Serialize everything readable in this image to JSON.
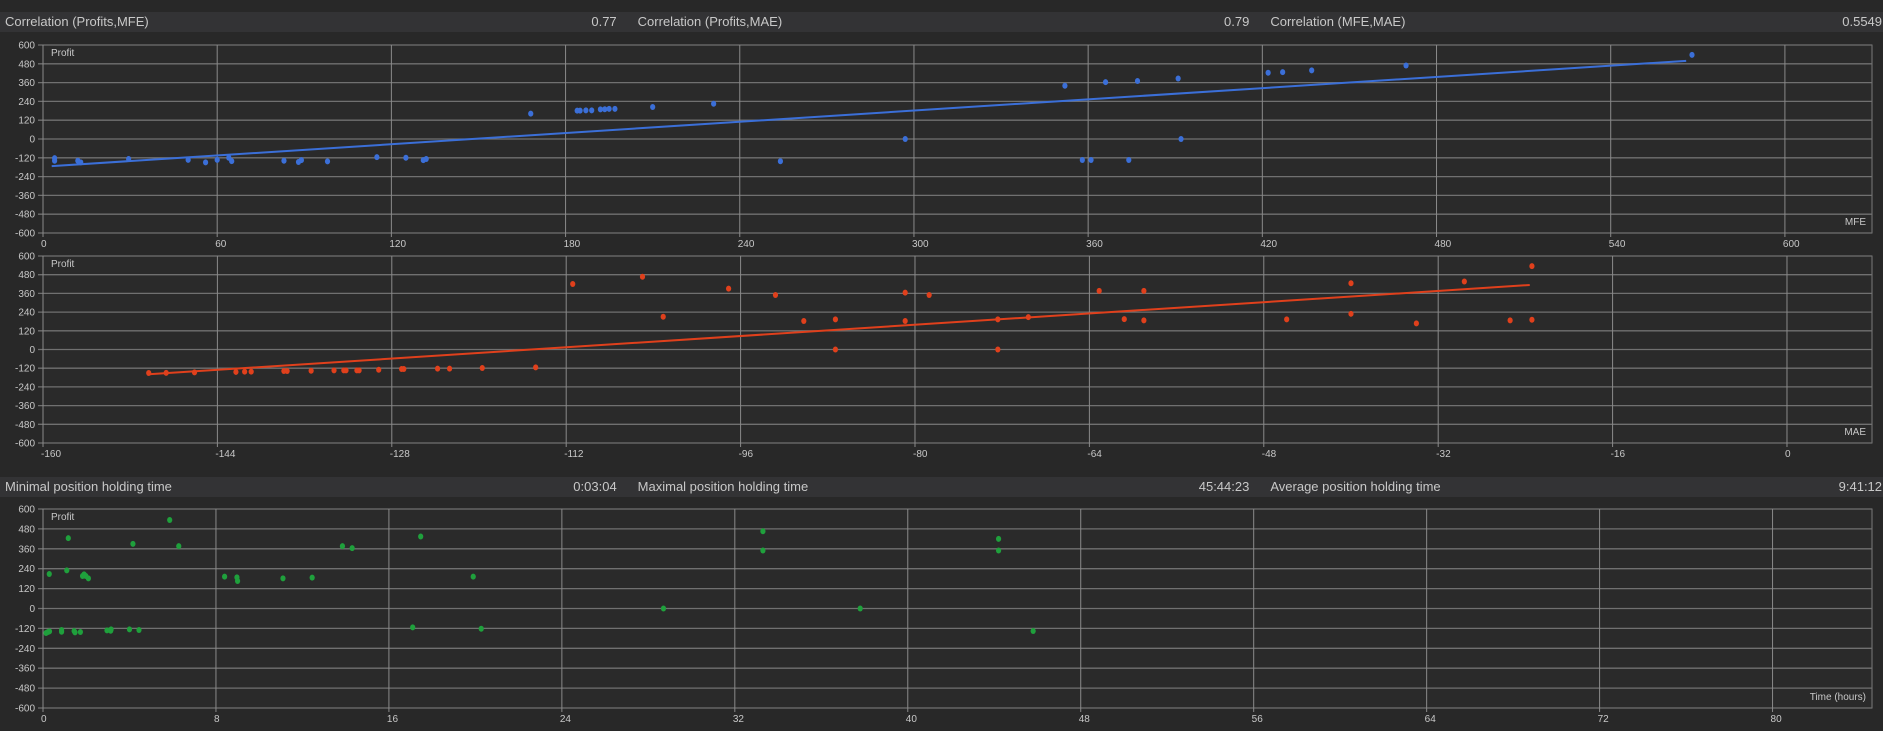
{
  "correlations": [
    {
      "label": "Correlation (Profits,MFE)",
      "value": "0.77"
    },
    {
      "label": "Correlation (Profits,MAE)",
      "value": "0.79"
    },
    {
      "label": "Correlation (MFE,MAE)",
      "value": "0.5549"
    }
  ],
  "holding_times": [
    {
      "label": "Minimal position holding time",
      "value": "0:03:04"
    },
    {
      "label": "Maximal position holding time",
      "value": "45:44:23"
    },
    {
      "label": "Average position holding time",
      "value": "9:41:12"
    }
  ],
  "chart_data": [
    {
      "type": "scatter",
      "ylabel": "Profit",
      "xlabel": "MFE",
      "color": "#3b6fd8",
      "xlim": [
        0,
        630
      ],
      "ylim": [
        -600,
        600
      ],
      "xticks": [
        0,
        60,
        120,
        180,
        240,
        300,
        360,
        420,
        480,
        540,
        600
      ],
      "yticks": [
        600,
        480,
        360,
        240,
        120,
        0,
        -120,
        -240,
        -360,
        -480,
        -600
      ],
      "grid": true,
      "points": [
        [
          4,
          -122
        ],
        [
          4,
          -139
        ],
        [
          12,
          -139
        ],
        [
          13,
          -149
        ],
        [
          29.5,
          -128
        ],
        [
          50,
          -133
        ],
        [
          56,
          -149
        ],
        [
          60,
          -133
        ],
        [
          64,
          -120
        ],
        [
          65,
          -141
        ],
        [
          83,
          -139
        ],
        [
          88,
          -147
        ],
        [
          89,
          -135
        ],
        [
          98,
          -143
        ],
        [
          115,
          -116
        ],
        [
          125,
          -120
        ],
        [
          131,
          -135
        ],
        [
          132,
          -128
        ],
        [
          168,
          162
        ],
        [
          184,
          181
        ],
        [
          185,
          181
        ],
        [
          187,
          183
        ],
        [
          189,
          183
        ],
        [
          192,
          189
        ],
        [
          193.5,
          190
        ],
        [
          195,
          192
        ],
        [
          197,
          192
        ],
        [
          210,
          204
        ],
        [
          231,
          225
        ],
        [
          254,
          -142
        ],
        [
          297,
          0
        ],
        [
          352,
          340
        ],
        [
          358,
          -134
        ],
        [
          361,
          -134
        ],
        [
          366,
          363
        ],
        [
          374,
          -134
        ],
        [
          377,
          370
        ],
        [
          391,
          386
        ],
        [
          392,
          0
        ],
        [
          422,
          423
        ],
        [
          427,
          427
        ],
        [
          437,
          438
        ],
        [
          469.5,
          469
        ],
        [
          568,
          537
        ]
      ],
      "trendline": [
        [
          3,
          -173
        ],
        [
          566,
          499
        ]
      ]
    },
    {
      "type": "scatter",
      "ylabel": "Profit",
      "xlabel": "MAE",
      "color": "#e0401c",
      "xlim": [
        -160,
        7.8
      ],
      "ylim": [
        -600,
        600
      ],
      "xticks": [
        -160,
        -144,
        -128,
        -112,
        -96,
        -80,
        -64,
        -48,
        -32,
        -16,
        0
      ],
      "yticks": [
        600,
        480,
        360,
        240,
        120,
        0,
        -120,
        -240,
        -360,
        -480,
        -600
      ],
      "grid": true,
      "points": [
        [
          -150.3,
          -151
        ],
        [
          -148.7,
          -150
        ],
        [
          -146.1,
          -147
        ],
        [
          -142.3,
          -144
        ],
        [
          -141.5,
          -142
        ],
        [
          -140.9,
          -142
        ],
        [
          -137.9,
          -138
        ],
        [
          -137.6,
          -138
        ],
        [
          -135.4,
          -136
        ],
        [
          -133.3,
          -134
        ],
        [
          -132.4,
          -134
        ],
        [
          -132.2,
          -134
        ],
        [
          -131.2,
          -134
        ],
        [
          -131,
          -134
        ],
        [
          -129.2,
          -130
        ],
        [
          -127.1,
          -125
        ],
        [
          -126.9,
          -125
        ],
        [
          -123.8,
          -123
        ],
        [
          -122.7,
          -123
        ],
        [
          -119.7,
          -119
        ],
        [
          -114.8,
          -115
        ],
        [
          -111.4,
          420
        ],
        [
          -105,
          467
        ],
        [
          -103.1,
          210
        ],
        [
          -97.1,
          391
        ],
        [
          -92.8,
          350
        ],
        [
          -90.2,
          183
        ],
        [
          -87.3,
          193
        ],
        [
          -87.3,
          0
        ],
        [
          -80.9,
          365
        ],
        [
          -80.9,
          183
        ],
        [
          -78.7,
          350
        ],
        [
          -72.4,
          193
        ],
        [
          -72.4,
          0
        ],
        [
          -69.6,
          208
        ],
        [
          -63.1,
          376
        ],
        [
          -60.8,
          195
        ],
        [
          -59,
          376
        ],
        [
          -59,
          187
        ],
        [
          -45.9,
          193
        ],
        [
          -40,
          425
        ],
        [
          -40,
          229
        ],
        [
          -34,
          168
        ],
        [
          -29.6,
          436
        ],
        [
          -25.4,
          187
        ],
        [
          -23.4,
          535
        ],
        [
          -23.4,
          191
        ]
      ],
      "trendline": [
        [
          -150.3,
          -159
        ],
        [
          -23.6,
          414
        ]
      ]
    },
    {
      "type": "scatter",
      "ylabel": "Profit",
      "xlabel": "Time (hours)",
      "color": "#1fa03c",
      "xlim": [
        0,
        84.6
      ],
      "ylim": [
        -600,
        600
      ],
      "xticks": [
        0,
        8,
        16,
        24,
        32,
        40,
        48,
        56,
        64,
        72,
        80
      ],
      "yticks": [
        600,
        480,
        360,
        240,
        120,
        0,
        -120,
        -240,
        -360,
        -480,
        -600
      ],
      "grid": true,
      "points": [
        [
          0.14,
          -148
        ],
        [
          0.23,
          -142
        ],
        [
          0.3,
          -138
        ],
        [
          0.29,
          208
        ],
        [
          0.86,
          -130
        ],
        [
          0.86,
          -140
        ],
        [
          1.1,
          230
        ],
        [
          1.17,
          424
        ],
        [
          1.44,
          -136
        ],
        [
          1.48,
          -144
        ],
        [
          1.73,
          -142
        ],
        [
          1.83,
          196
        ],
        [
          1.9,
          206
        ],
        [
          1.98,
          196
        ],
        [
          2.1,
          182
        ],
        [
          2.96,
          -132
        ],
        [
          3.15,
          -126
        ],
        [
          3.13,
          -134
        ],
        [
          4,
          -126
        ],
        [
          4.16,
          390
        ],
        [
          4.44,
          -130
        ],
        [
          5.86,
          534
        ],
        [
          6.28,
          376
        ],
        [
          8.4,
          192
        ],
        [
          8.97,
          188
        ],
        [
          9,
          166
        ],
        [
          11.1,
          182
        ],
        [
          12.45,
          186
        ],
        [
          13.85,
          376
        ],
        [
          14.3,
          364
        ],
        [
          17.1,
          -114
        ],
        [
          17.47,
          434
        ],
        [
          19.9,
          192
        ],
        [
          20.27,
          -122
        ],
        [
          28.7,
          0
        ],
        [
          33.3,
          466
        ],
        [
          33.3,
          350
        ],
        [
          37.8,
          0
        ],
        [
          44.2,
          420
        ],
        [
          44.2,
          350
        ],
        [
          45.8,
          -136
        ]
      ]
    }
  ]
}
